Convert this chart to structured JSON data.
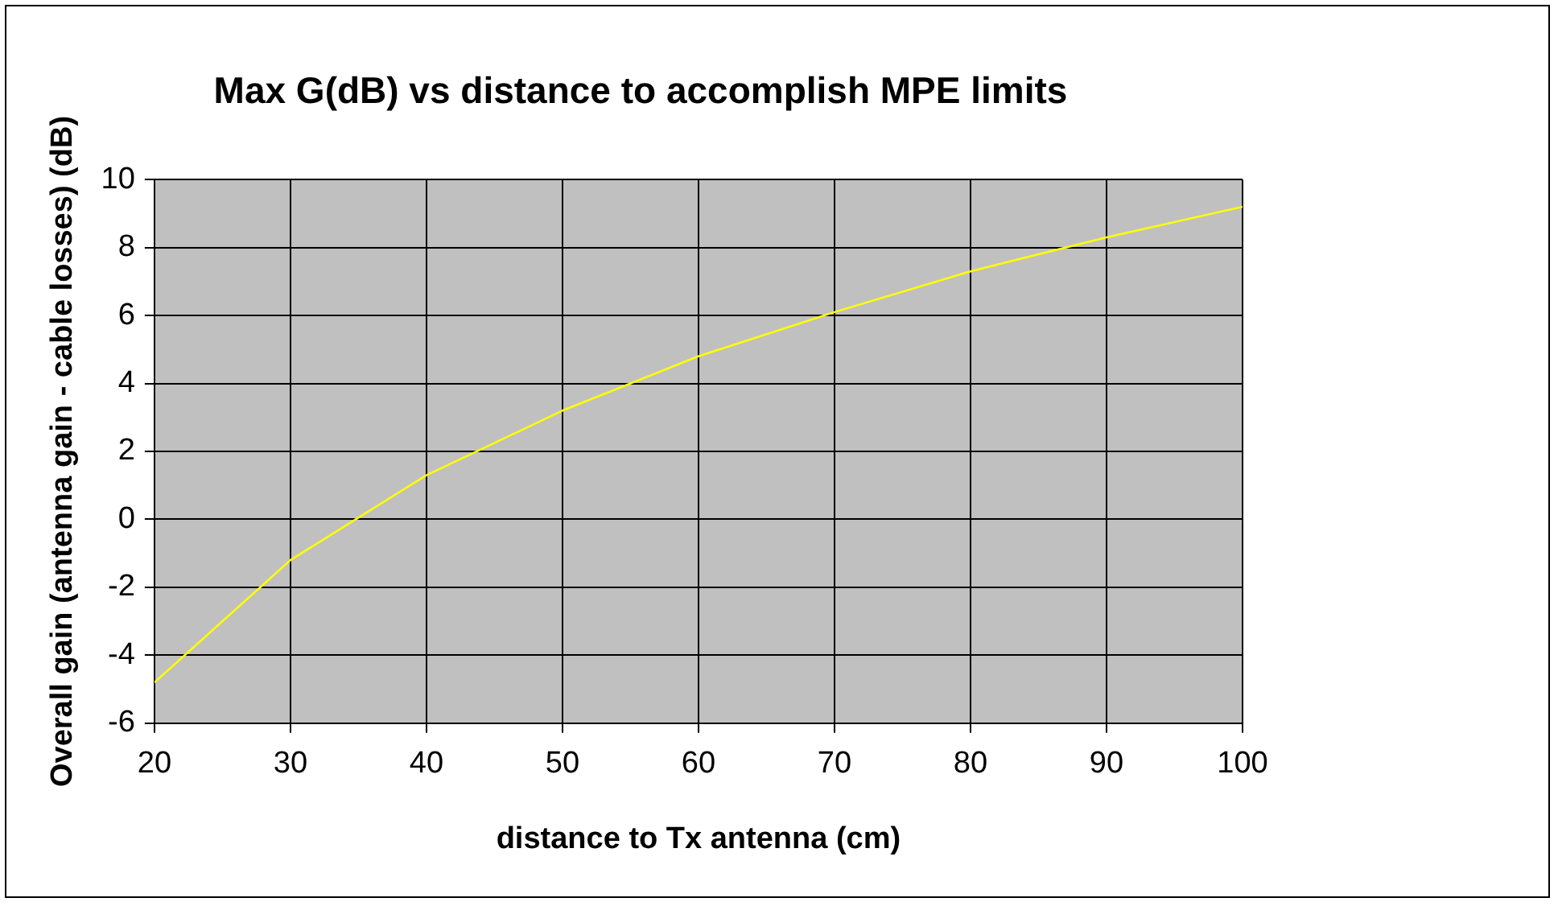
{
  "chart_data": {
    "type": "line",
    "title": "Max G(dB) vs distance to accomplish MPE limits",
    "xlabel": "distance to Tx antenna (cm)",
    "ylabel": "Overall gain (antenna gain - cable losses) (dB)",
    "x": [
      20,
      30,
      40,
      50,
      60,
      70,
      80,
      90,
      100
    ],
    "series": [
      {
        "color": "#ffff00",
        "values": [
          -4.8,
          -1.2,
          1.3,
          3.2,
          4.8,
          6.1,
          7.3,
          8.3,
          9.2
        ]
      }
    ],
    "xlim": [
      20,
      100
    ],
    "xticks": [
      20,
      30,
      40,
      50,
      60,
      70,
      80,
      90,
      100
    ],
    "ylim": [
      -6,
      10
    ],
    "yticks": [
      -6,
      -4,
      -2,
      0,
      2,
      4,
      6,
      8,
      10
    ],
    "grid": true,
    "legend": false,
    "marker": "none",
    "line_style": "solid"
  }
}
